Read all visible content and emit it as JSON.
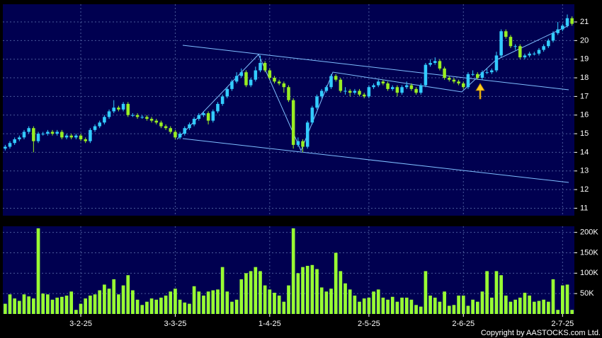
{
  "chart_data": [
    {
      "type": "candlestick",
      "up_color": "#33ccff",
      "down_color": "#99ee22",
      "open": [
        14.2,
        14.3,
        14.5,
        14.7,
        14.8,
        15.1,
        15.3,
        14.6,
        15.0,
        15.0,
        15.1,
        15.0,
        15.1,
        14.8,
        14.9,
        14.8,
        14.9,
        14.7,
        14.6,
        15.2,
        15.4,
        15.6,
        15.9,
        16.2,
        16.4,
        16.3,
        16.6,
        16.0,
        16.0,
        15.9,
        15.9,
        15.8,
        15.7,
        15.6,
        15.4,
        15.3,
        15.1,
        14.8,
        15.0,
        15.3,
        15.5,
        15.8,
        16.0,
        16.1,
        15.7,
        16.2,
        16.6,
        17.0,
        17.4,
        17.8,
        18.1,
        18.3,
        17.6,
        17.9,
        18.4,
        18.8,
        18.4,
        18.0,
        17.8,
        17.7,
        17.5,
        16.8,
        14.4,
        14.6,
        14.3,
        15.6,
        16.4,
        17.0,
        17.3,
        17.5,
        18.1,
        17.9,
        17.3,
        17.3,
        17.2,
        17.3,
        17.1,
        17.0,
        17.5,
        17.6,
        17.8,
        17.7,
        17.4,
        17.5,
        17.2,
        17.5,
        17.6,
        17.4,
        17.2,
        17.6,
        18.7,
        18.8,
        18.9,
        18.5,
        18.0,
        17.9,
        17.8,
        17.7,
        17.5,
        18.2,
        18.2,
        18.0,
        18.3,
        18.3,
        18.4,
        19.2,
        20.5,
        20.2,
        19.7,
        19.7,
        19.1,
        19.2,
        19.3,
        19.3,
        19.5,
        19.7,
        20.0,
        20.4,
        20.6,
        20.8,
        21.2
      ],
      "high": [
        14.4,
        14.6,
        14.8,
        14.9,
        15.2,
        15.4,
        15.4,
        15.1,
        15.1,
        15.2,
        15.2,
        15.2,
        15.2,
        15.0,
        15.0,
        15.0,
        15.0,
        14.8,
        15.3,
        15.5,
        15.7,
        16.0,
        16.3,
        16.8,
        16.5,
        16.7,
        16.7,
        16.1,
        16.1,
        16.0,
        16.0,
        15.9,
        15.8,
        15.7,
        15.5,
        15.4,
        15.2,
        15.1,
        15.4,
        15.6,
        15.9,
        16.1,
        16.2,
        16.2,
        16.3,
        16.7,
        17.1,
        17.5,
        17.9,
        18.3,
        18.5,
        18.4,
        18.0,
        18.6,
        19.2,
        18.9,
        18.5,
        18.1,
        17.9,
        17.8,
        17.6,
        16.9,
        14.8,
        14.7,
        15.7,
        16.5,
        17.1,
        17.4,
        17.6,
        18.2,
        18.2,
        18.0,
        17.5,
        17.4,
        17.4,
        17.4,
        17.2,
        17.6,
        17.7,
        17.9,
        17.9,
        17.8,
        17.6,
        17.6,
        17.6,
        17.8,
        17.7,
        17.5,
        17.7,
        18.8,
        19.0,
        19.1,
        19.0,
        18.6,
        18.1,
        18.0,
        17.9,
        17.8,
        18.3,
        18.4,
        18.3,
        18.4,
        18.5,
        18.5,
        19.4,
        20.6,
        20.6,
        20.3,
        19.8,
        19.8,
        19.3,
        19.4,
        19.4,
        19.6,
        19.8,
        20.1,
        20.5,
        21.0,
        20.9,
        21.4,
        21.3
      ],
      "low": [
        14.1,
        14.2,
        14.4,
        14.6,
        14.7,
        15.0,
        14.0,
        14.5,
        14.9,
        14.9,
        14.9,
        14.9,
        14.7,
        14.7,
        14.7,
        14.7,
        14.6,
        14.5,
        14.5,
        15.1,
        15.3,
        15.5,
        15.8,
        16.1,
        16.2,
        16.2,
        15.9,
        15.9,
        15.8,
        15.8,
        15.7,
        15.6,
        15.5,
        15.3,
        15.2,
        15.0,
        14.7,
        14.7,
        14.9,
        15.2,
        15.4,
        15.7,
        15.9,
        15.5,
        15.6,
        16.1,
        16.5,
        16.9,
        17.3,
        17.7,
        18.0,
        17.5,
        17.5,
        17.8,
        18.3,
        18.3,
        17.9,
        17.7,
        17.6,
        17.2,
        16.7,
        14.2,
        14.3,
        14.0,
        14.2,
        15.5,
        16.3,
        16.9,
        17.2,
        17.4,
        17.8,
        17.2,
        17.1,
        17.0,
        17.1,
        17.0,
        16.9,
        16.9,
        17.4,
        17.5,
        17.6,
        17.3,
        17.3,
        17.0,
        17.1,
        17.4,
        17.3,
        17.1,
        17.1,
        17.5,
        18.6,
        18.7,
        18.4,
        17.9,
        17.8,
        17.7,
        17.6,
        17.4,
        17.4,
        18.1,
        17.9,
        17.9,
        18.2,
        18.2,
        18.3,
        19.1,
        20.1,
        19.6,
        19.5,
        19.0,
        19.0,
        19.1,
        19.2,
        19.2,
        19.4,
        19.6,
        19.9,
        20.3,
        20.5,
        20.7,
        20.8
      ],
      "close": [
        14.3,
        14.5,
        14.7,
        14.8,
        15.1,
        15.3,
        14.6,
        15.0,
        15.0,
        15.1,
        15.0,
        15.1,
        14.8,
        14.9,
        14.8,
        14.9,
        14.7,
        14.6,
        15.2,
        15.4,
        15.6,
        15.9,
        16.2,
        16.4,
        16.3,
        16.6,
        16.0,
        16.0,
        15.9,
        15.9,
        15.8,
        15.7,
        15.6,
        15.4,
        15.3,
        15.1,
        14.8,
        15.0,
        15.3,
        15.5,
        15.8,
        16.0,
        16.1,
        15.7,
        16.2,
        16.6,
        17.0,
        17.4,
        17.8,
        18.1,
        18.3,
        17.6,
        17.9,
        18.4,
        18.8,
        18.4,
        18.0,
        17.8,
        17.7,
        17.5,
        16.8,
        14.4,
        14.6,
        14.3,
        15.6,
        16.4,
        17.0,
        17.3,
        17.5,
        18.1,
        17.9,
        17.3,
        17.3,
        17.2,
        17.3,
        17.1,
        17.0,
        17.5,
        17.6,
        17.8,
        17.7,
        17.4,
        17.5,
        17.2,
        17.5,
        17.6,
        17.4,
        17.2,
        17.6,
        18.7,
        18.8,
        18.9,
        18.5,
        18.0,
        17.9,
        17.8,
        17.7,
        17.5,
        18.2,
        18.2,
        18.0,
        18.3,
        18.3,
        18.4,
        19.2,
        20.5,
        20.2,
        19.7,
        19.7,
        19.1,
        19.2,
        19.3,
        19.3,
        19.5,
        19.7,
        20.0,
        20.4,
        20.6,
        20.8,
        21.2,
        20.9
      ],
      "ylim": [
        10.6,
        21.95
      ],
      "yticks": [
        11,
        12,
        13,
        14,
        15,
        16,
        17,
        18,
        19,
        20,
        21
      ],
      "grid": true
    },
    {
      "type": "bar",
      "color": "#99ff33",
      "categories": [
        null,
        null,
        null,
        null,
        null,
        null,
        null,
        null,
        null,
        null,
        null,
        null,
        null,
        null,
        null,
        null,
        "3-2-25",
        null,
        null,
        null,
        null,
        null,
        null,
        null,
        null,
        null,
        null,
        null,
        null,
        null,
        null,
        null,
        null,
        null,
        null,
        null,
        "3-3-25",
        null,
        null,
        null,
        null,
        null,
        null,
        null,
        null,
        null,
        null,
        null,
        null,
        null,
        null,
        null,
        null,
        null,
        null,
        null,
        "1-4-25",
        null,
        null,
        null,
        null,
        null,
        null,
        null,
        null,
        null,
        null,
        null,
        null,
        null,
        null,
        null,
        null,
        null,
        null,
        null,
        null,
        "2-5-25",
        null,
        null,
        null,
        null,
        null,
        null,
        null,
        null,
        null,
        null,
        null,
        null,
        null,
        null,
        null,
        null,
        null,
        null,
        null,
        "2-6-25",
        null,
        null,
        null,
        null,
        null,
        null,
        null,
        null,
        null,
        null,
        null,
        null,
        null,
        null,
        null,
        null,
        null,
        null,
        null,
        null,
        "2-7-25",
        null,
        null
      ],
      "values": [
        25000,
        48000,
        38000,
        32000,
        48000,
        43000,
        38000,
        210000,
        50000,
        48000,
        35000,
        40000,
        42000,
        45000,
        55000,
        10000,
        25000,
        38000,
        45000,
        48000,
        58000,
        72000,
        62000,
        85000,
        48000,
        70000,
        95000,
        58000,
        35000,
        22000,
        30000,
        38000,
        35000,
        40000,
        45000,
        55000,
        62000,
        35000,
        28000,
        25000,
        68000,
        55000,
        45000,
        55000,
        58000,
        60000,
        115000,
        55000,
        30000,
        35000,
        85000,
        100000,
        105000,
        115000,
        105000,
        70000,
        60000,
        52000,
        45000,
        30000,
        70000,
        210000,
        100000,
        115000,
        118000,
        120000,
        110000,
        65000,
        55000,
        62000,
        150000,
        105000,
        75000,
        60000,
        45000,
        30000,
        38000,
        40000,
        55000,
        60000,
        40000,
        35000,
        42000,
        30000,
        40000,
        40000,
        35000,
        22000,
        18000,
        105000,
        45000,
        40000,
        30000,
        55000,
        20000,
        22000,
        45000,
        45000,
        20000,
        35000,
        30000,
        55000,
        105000,
        40000,
        105000,
        95000,
        45000,
        30000,
        35000,
        40000,
        52000,
        45000,
        30000,
        32000,
        35000,
        30000,
        85000,
        10000,
        70000,
        72000,
        10000
      ],
      "ylim": [
        0,
        215000
      ],
      "yticks": [
        {
          "value": 50000,
          "label": "50K"
        },
        {
          "value": 100000,
          "label": "100K"
        },
        {
          "value": 150000,
          "label": "150K"
        },
        {
          "value": 200000,
          "label": "200K"
        }
      ],
      "grid": true
    }
  ],
  "copyright": "Copyright by AASTOCKS.com Ltd."
}
